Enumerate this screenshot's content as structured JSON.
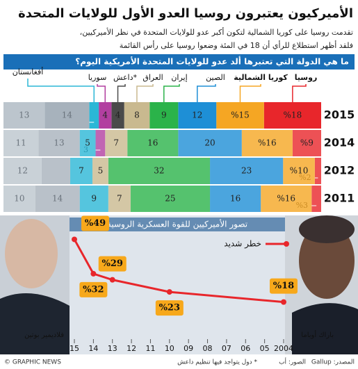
{
  "header": {
    "title": "الأميركيون يعتبرون روسيا العدو الأول للولايات المتحدة",
    "subtitle": [
      "تقدمت روسيا على كوريا الشمالية لتكون أكبر عدو للولايات المتحدة في نظر الأميركيين،",
      "فلقد أظهر استطلاع للرأي أن 18 في المئة وضعوا روسيا على رأس القائمة"
    ]
  },
  "chart_data": [
    {
      "type": "stacked-bar",
      "title": "ما هي الدولة التي تعتبرها ألد عدو للولايات المتحدة الأمريكية اليوم؟",
      "categories": [
        "2015",
        "2014",
        "2012",
        "2011"
      ],
      "xlim": [
        0,
        100
      ],
      "series": [
        {
          "name": "روسيا",
          "color": "#e8262b",
          "values": [
            18,
            9,
            2,
            3
          ],
          "value_labels": [
            "%18",
            "%9",
            "%2",
            "%3"
          ]
        },
        {
          "name": "كوريا الشمالية",
          "color": "#f5a623",
          "values": [
            15,
            16,
            10,
            16
          ],
          "value_labels": [
            "%15",
            "%16",
            "%10",
            "%16"
          ]
        },
        {
          "name": "الصين",
          "color": "#1e8fd6",
          "values": [
            12,
            20,
            23,
            16
          ]
        },
        {
          "name": "إيران",
          "color": "#2bb34a",
          "values": [
            9,
            16,
            32,
            25
          ]
        },
        {
          "name": "العراق",
          "color": "#c9b98f",
          "values": [
            8,
            7,
            5,
            7
          ]
        },
        {
          "name": "داعش*",
          "color": "#4a4a4a",
          "values": [
            4,
            null,
            null,
            null
          ]
        },
        {
          "name": "سوريا",
          "color": "#b23fa0",
          "values": [
            4,
            3,
            null,
            null
          ]
        },
        {
          "name": "أفغانستان",
          "color": "#2bb7d6",
          "values": [
            3,
            5,
            7,
            9
          ]
        },
        {
          "color": "#a7b2bc",
          "values": [
            14,
            13,
            9,
            14
          ],
          "value_labels": [
            "14",
            "13",
            null,
            "14"
          ]
        },
        {
          "color": "#bcc5cd",
          "values": [
            13,
            11,
            12,
            10
          ]
        }
      ]
    },
    {
      "type": "line",
      "title": "تصور الأميركيين للقوة العسكرية الروسية",
      "x": [
        2015,
        2014,
        2013,
        2010,
        2004
      ],
      "series": [
        {
          "name": "خطر شديد",
          "color": "#e8262b",
          "values": [
            49,
            32,
            29,
            23,
            18
          ],
          "value_labels": [
            "%49",
            "%32",
            "%29",
            "%23",
            "%18"
          ]
        }
      ],
      "xlim": [
        2015,
        2004
      ],
      "ylim": [
        0,
        55
      ],
      "xticks": [
        {
          "value": 2015,
          "label": "15"
        },
        {
          "value": 2014,
          "label": "14"
        },
        {
          "value": 2013,
          "label": "13"
        },
        {
          "value": 2012,
          "label": "12"
        },
        {
          "value": 2011,
          "label": "11"
        },
        {
          "value": 2010,
          "label": "10"
        },
        {
          "value": 2009,
          "label": "09"
        },
        {
          "value": 2008,
          "label": "08"
        },
        {
          "value": 2007,
          "label": "07"
        },
        {
          "value": 2006,
          "label": "06"
        },
        {
          "value": 2005,
          "label": "05"
        },
        2004
      ],
      "annotations": [
        "فلاديمير بوتين",
        "باراك أوباما"
      ]
    }
  ],
  "footer": {
    "credit": "© GRAPHIC NEWS",
    "source": "المصدر: Gallup",
    "photos": "الصور: أب",
    "note": "* دول يتواجد فيها تنظيم داعش"
  }
}
